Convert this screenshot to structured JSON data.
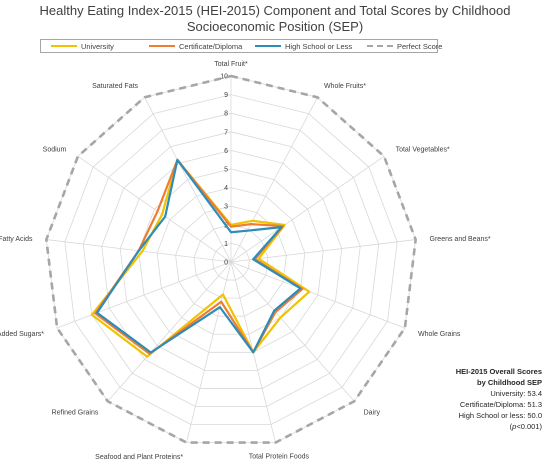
{
  "title_line1": "Healthy Eating Index-2015 (HEI-2015) Component and Total Scores by Childhood",
  "title_line2": "Socioeconomic Position (SEP)",
  "summary": {
    "heading1": "HEI-2015 Overall Scores",
    "heading2": "by Childhood SEP",
    "line1": "University: 53.4",
    "line2": "Certificate/Diploma: 51.3",
    "line3": "High School or less: 50.0",
    "p_open": "(",
    "p_ital": "p",
    "p_rest": "<0.001)"
  },
  "colors": {
    "university": "#F2C200",
    "certificate": "#ED7D31",
    "highschool": "#2E8CB8",
    "perfect": "#A6A6A6",
    "grid": "#D9D9D9"
  },
  "chart_data": {
    "type": "radar",
    "ylim": [
      0,
      10
    ],
    "ticks": [
      "0",
      "1",
      "2",
      "3",
      "4",
      "5",
      "6",
      "7",
      "8",
      "9",
      "10"
    ],
    "categories": [
      "Total Fruit*",
      "Whole Fruits*",
      "Total Vegetables*",
      "Greens and Beans*",
      "Whole Grains",
      "Dairy",
      "Total Protein Foods",
      "Seafood and Plant Proteins*",
      "Refined Grains",
      "Added Sugars*",
      "Fatty Acids",
      "Sodium",
      "Saturated Fats"
    ],
    "legend_position": "top",
    "series": [
      {
        "name": "University",
        "color_key": "university",
        "dash": false,
        "values": [
          2.0,
          2.5,
          3.5,
          1.5,
          4.5,
          4.0,
          5.0,
          1.8,
          6.8,
          8.0,
          4.8,
          4.5,
          6.2
        ]
      },
      {
        "name": "Certificate/Diploma",
        "color_key": "certificate",
        "dash": false,
        "values": [
          1.9,
          2.3,
          3.4,
          1.3,
          4.1,
          3.6,
          5.0,
          2.2,
          6.6,
          7.8,
          5.0,
          4.8,
          6.2
        ]
      },
      {
        "name": "High School or Less",
        "color_key": "highschool",
        "dash": false,
        "values": [
          1.6,
          1.9,
          3.3,
          1.2,
          4.0,
          3.5,
          5.0,
          2.5,
          6.5,
          7.7,
          5.0,
          4.3,
          6.2
        ]
      },
      {
        "name": "Perfect Score",
        "color_key": "perfect",
        "dash": true,
        "values": [
          10,
          10,
          10,
          10,
          10,
          10,
          10,
          10,
          10,
          10,
          10,
          10,
          10
        ]
      }
    ]
  }
}
